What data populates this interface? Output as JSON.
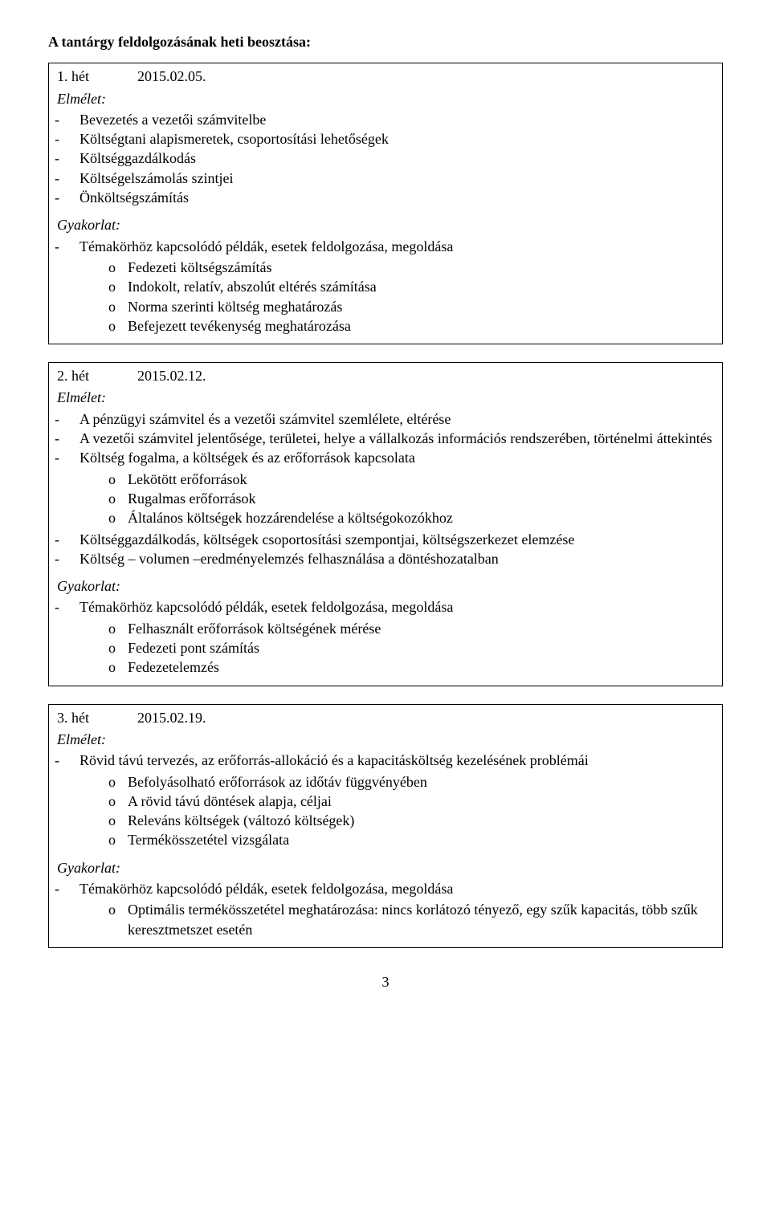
{
  "section_title": "A tantárgy feldolgozásának heti beosztása:",
  "elmeletLabel": "Elmélet:",
  "gyakorlatLabel": "Gyakorlat:",
  "gyakIntro": "Témakörhöz kapcsolódó példák, esetek feldolgozása, megoldása",
  "pageNumber": "3",
  "week1": {
    "label": "1. hét",
    "date": "2015.02.05.",
    "elm": {
      "b1": "Bevezetés a vezetői számvitelbe",
      "b2": "Költségtani alapismeretek, csoportosítási lehetőségek",
      "b3": "Költséggazdálkodás",
      "b4": "Költségelszámolás szintjei",
      "b5": "Önköltségszámítás"
    },
    "gyak": {
      "s1": "Fedezeti költségszámítás",
      "s2": "Indokolt, relatív, abszolút eltérés számítása",
      "s3": "Norma szerinti költség meghatározás",
      "s4": "Befejezett tevékenység meghatározása"
    }
  },
  "week2": {
    "label": "2. hét",
    "date": "2015.02.12.",
    "elm": {
      "b1": "A pénzügyi számvitel és a vezetői számvitel szemlélete, eltérése",
      "b2": "A vezetői számvitel jelentősége, területei, helye a vállalkozás információs rendszerében, történelmi áttekintés",
      "b3": "Költség fogalma, a költségek és az erőforrások kapcsolata",
      "s1": "Lekötött erőforrások",
      "s2": "Rugalmas erőforrások",
      "s3": "Általános költségek hozzárendelése a költségokozókhoz",
      "b4": "Költséggazdálkodás, költségek csoportosítási szempontjai, költségszerkezet elemzése",
      "b5": "Költség – volumen –eredményelemzés felhasználása a döntéshozatalban"
    },
    "gyak": {
      "s1": "Felhasznált erőforrások költségének mérése",
      "s2": "Fedezeti pont számítás",
      "s3": "Fedezetelemzés"
    }
  },
  "week3": {
    "label": "3. hét",
    "date": "2015.02.19.",
    "elm": {
      "b1": "Rövid távú tervezés, az erőforrás-allokáció és a kapacitásköltség kezelésének problémái",
      "s1": "Befolyásolható erőforrások az időtáv függvényében",
      "s2": "A rövid távú döntések alapja, céljai",
      "s3": "Releváns költségek (változó költségek)",
      "s4": "Termékösszetétel vizsgálata"
    },
    "gyak": {
      "s1": "Optimális termékösszetétel meghatározása: nincs korlátozó tényező, egy szűk kapacitás, több szűk keresztmetszet esetén"
    }
  }
}
